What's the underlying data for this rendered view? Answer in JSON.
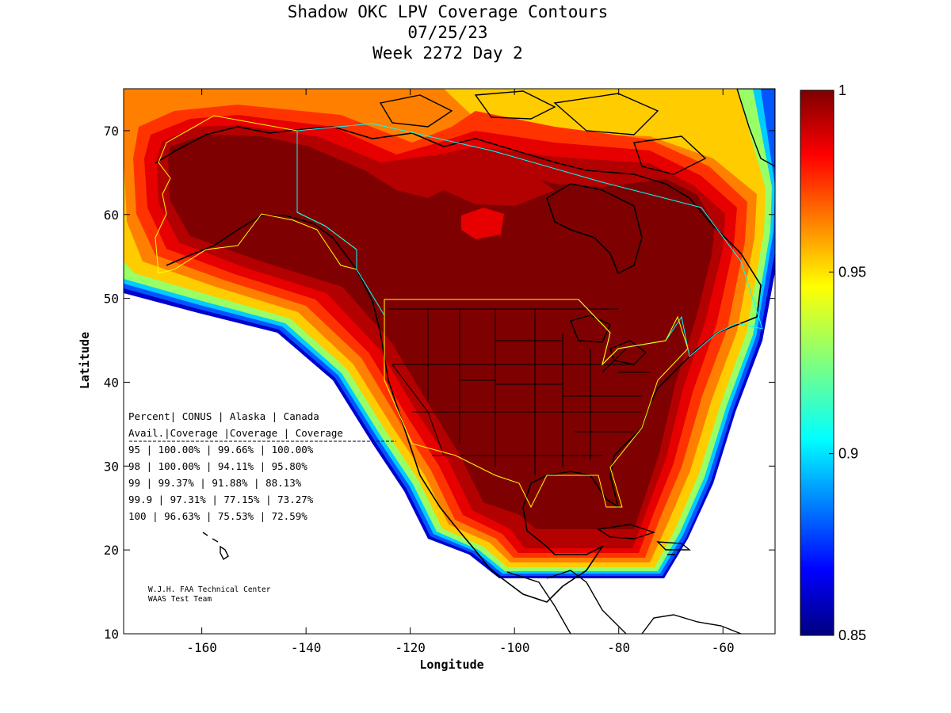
{
  "title": {
    "line1": "Shadow OKC LPV Coverage Contours",
    "line2": "07/25/23",
    "line3": "Week 2272 Day 2"
  },
  "axes": {
    "xlabel": "Longitude",
    "ylabel": "Latitude",
    "xticks": [
      {
        "value": -160,
        "label": "-160"
      },
      {
        "value": -140,
        "label": "-140"
      },
      {
        "value": -120,
        "label": "-120"
      },
      {
        "value": -100,
        "label": "-100"
      },
      {
        "value": -80,
        "label": "-80"
      },
      {
        "value": -60,
        "label": "-60"
      }
    ],
    "yticks": [
      {
        "value": 10,
        "label": "10"
      },
      {
        "value": 20,
        "label": "20"
      },
      {
        "value": 30,
        "label": "30"
      },
      {
        "value": 40,
        "label": "40"
      },
      {
        "value": 50,
        "label": "50"
      },
      {
        "value": 60,
        "label": "60"
      },
      {
        "value": 70,
        "label": "70"
      }
    ],
    "xlim": [
      -175,
      -50
    ],
    "ylim": [
      10,
      75
    ]
  },
  "colorbar": {
    "range": [
      0.85,
      1
    ],
    "colormap": "jet",
    "ticks": [
      {
        "value": 1,
        "label": "1"
      },
      {
        "value": 0.95,
        "label": "0.95"
      },
      {
        "value": 0.9,
        "label": "0.9"
      },
      {
        "value": 0.85,
        "label": "0.85"
      }
    ]
  },
  "availability_table": {
    "header1": "Percent| CONUS   | Alaska  | Canada",
    "header2": " Avail.|Coverage |Coverage | Coverage",
    "rows": [
      "  95   | 100.00%  | 99.66% | 100.00%",
      "  98   | 100.00%  | 94.11% | 95.80%",
      "  99   | 99.37%  | 91.88% | 88.13%",
      "99.9   | 97.31%  | 77.15% | 73.27%",
      " 100   | 96.63%  | 75.53% | 72.59%"
    ]
  },
  "credits": {
    "line1": "W.J.H. FAA Technical Center",
    "line2": "WAAS Test Team"
  },
  "colors": {
    "c100": "#7f0000",
    "c99": "#b30000",
    "c98": "#e60000",
    "c97": "#ff3300",
    "c96": "#ff8000",
    "c95": "#ffcc00",
    "c93": "#99ff66",
    "c91": "#00ccff",
    "c88": "#0055ff",
    "c86": "#0000cc"
  }
}
